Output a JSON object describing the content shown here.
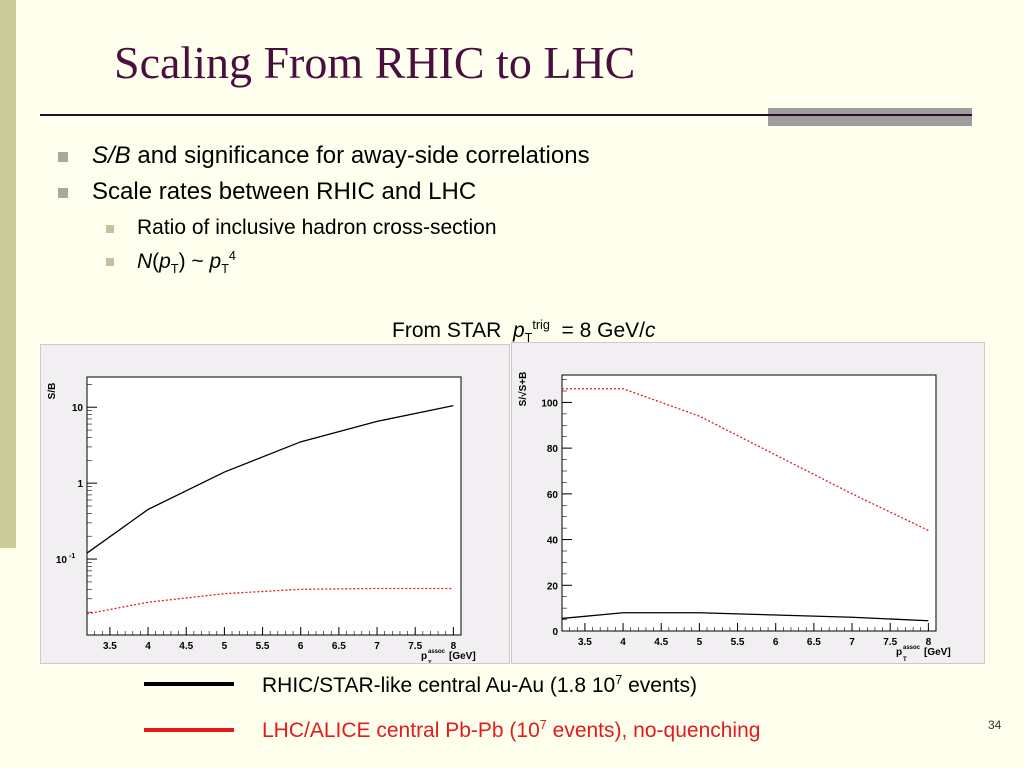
{
  "slide": {
    "title": "Scaling From RHIC to LHC",
    "number": "34"
  },
  "bullets": [
    {
      "italic": "S/B",
      "text": " and significance for away-side correlations"
    },
    {
      "text": "Scale rates between RHIC and LHC"
    }
  ],
  "sub_bullets": [
    {
      "text": "Ratio of inclusive hadron cross-section"
    },
    {
      "n": "N",
      "p": "p",
      "t": "T",
      "tilde": ") ~ ",
      "pow": "4"
    }
  ],
  "caption": {
    "prefix": "From STAR  ",
    "p": "p",
    "t": "T",
    "trig": "trig",
    "value": "  = 8 GeV/",
    "c": "c"
  },
  "legend": [
    {
      "label_pre": "RHIC/STAR-like central Au-Au (1.8 10",
      "exp": "7",
      "label_post": " events)",
      "color": "#000000"
    },
    {
      "label_pre": "LHC/ALICE  central Pb-Pb (10",
      "exp": "7",
      "label_post": " events), no-quenching",
      "color": "#e41a1c"
    }
  ],
  "chart_data": [
    {
      "type": "line",
      "ylabel": "S/B",
      "xlabel_p": "p",
      "xlabel_sub": "T",
      "xlabel_sup": "assoc",
      "xlabel_unit": "[GeV]",
      "log_y": true,
      "xlim": [
        3.2,
        8.1
      ],
      "ylim": [
        0.01,
        25
      ],
      "x_ticks": [
        "3.5",
        "4",
        "4.5",
        "5",
        "5.5",
        "6",
        "6.5",
        "7",
        "7.5",
        "8"
      ],
      "y_ticks": [
        {
          "v": 10,
          "label": "10"
        },
        {
          "v": 1,
          "label": "1"
        },
        {
          "v": 0.1,
          "label": "10^-1"
        }
      ],
      "series": [
        {
          "color": "#000000",
          "dash": "",
          "x": [
            3.2,
            4,
            5,
            6,
            7,
            8
          ],
          "y": [
            0.12,
            0.45,
            1.4,
            3.5,
            6.5,
            10.5
          ]
        },
        {
          "color": "#e41a1c",
          "dash": "2,2",
          "x": [
            3.2,
            4,
            5,
            6,
            7,
            8
          ],
          "y": [
            0.019,
            0.027,
            0.035,
            0.04,
            0.041,
            0.041
          ]
        }
      ]
    },
    {
      "type": "line",
      "ylabel": "S/√S+B",
      "xlabel_p": "p",
      "xlabel_sub": "T",
      "xlabel_sup": "assoc",
      "xlabel_unit": "[GeV]",
      "log_y": false,
      "xlim": [
        3.2,
        8.1
      ],
      "ylim": [
        0,
        112
      ],
      "x_ticks": [
        "3.5",
        "4",
        "4.5",
        "5",
        "5.5",
        "6",
        "6.5",
        "7",
        "7.5",
        "8"
      ],
      "y_ticks": [
        {
          "v": 0,
          "label": "0"
        },
        {
          "v": 20,
          "label": "20"
        },
        {
          "v": 40,
          "label": "40"
        },
        {
          "v": 60,
          "label": "60"
        },
        {
          "v": 80,
          "label": "80"
        },
        {
          "v": 100,
          "label": "100"
        }
      ],
      "series": [
        {
          "color": "#000000",
          "dash": "",
          "x": [
            3.2,
            4,
            5,
            6,
            7,
            8
          ],
          "y": [
            5.5,
            8,
            8,
            7,
            6,
            4.5
          ]
        },
        {
          "color": "#e41a1c",
          "dash": "2,2",
          "x": [
            3.2,
            4,
            5,
            6,
            7,
            8
          ],
          "y": [
            106,
            106,
            94,
            77,
            60,
            44
          ]
        }
      ]
    }
  ]
}
